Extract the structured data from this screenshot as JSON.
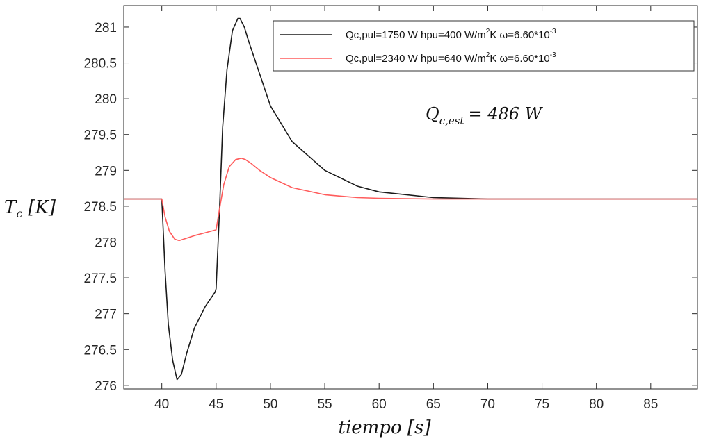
{
  "chart_data": {
    "type": "line",
    "xlabel": "tiempo [s]",
    "ylabel": "T_c [K]",
    "ylabel_main": "T",
    "ylabel_sub": "c",
    "ylabel_unit": "[K]",
    "xlim": [
      36.5,
      89.3
    ],
    "ylim": [
      275.95,
      281.3
    ],
    "xticks": [
      40,
      45,
      50,
      55,
      60,
      65,
      70,
      75,
      80,
      85
    ],
    "yticks": [
      276,
      276.5,
      277,
      277.5,
      278,
      278.5,
      279,
      279.5,
      280,
      280.5,
      281
    ],
    "ytick_labels": [
      "276",
      "276.5",
      "277",
      "277.5",
      "278",
      "278.5",
      "279",
      "279.5",
      "280",
      "280.5",
      "281"
    ],
    "grid": false,
    "legend_position": "top-right",
    "annotation": {
      "main": "Q",
      "sub": "c,est",
      "text": "= 486 W"
    },
    "series": [
      {
        "name": "Qc,pul=1750 W  hpu=400 W/m²K  ω=6.60*10⁻³",
        "legend_parts": [
          "Qc,pul=1750 W  hpu=400 W/m",
          "2",
          "K  ω=6.60*10",
          "-3"
        ],
        "color": "#1a1a1a",
        "x": [
          36.5,
          40,
          40.3,
          40.6,
          41.0,
          41.4,
          41.8,
          42.3,
          43,
          44,
          44.9,
          45.0,
          45.3,
          45.6,
          46,
          46.5,
          47.0,
          47.2,
          47.6,
          48,
          49,
          50,
          52,
          55,
          58,
          60,
          65,
          70,
          75,
          80,
          85,
          89.3
        ],
        "y": [
          278.6,
          278.6,
          277.6,
          276.85,
          276.35,
          276.08,
          276.15,
          276.45,
          276.8,
          277.1,
          277.3,
          277.35,
          278.4,
          279.6,
          280.4,
          280.95,
          281.12,
          281.12,
          281.0,
          280.8,
          280.35,
          279.9,
          279.4,
          279.0,
          278.78,
          278.7,
          278.62,
          278.6,
          278.6,
          278.6,
          278.6,
          278.6
        ]
      },
      {
        "name": "Qc,pul=2340 W  hpu=640 W/m²K  ω=6.60*10⁻³",
        "legend_parts": [
          "Qc,pul=2340 W  hpu=640 W/m",
          "2",
          "K  ω=6.60*10",
          "-3"
        ],
        "color": "#ff5c5c",
        "x": [
          36.5,
          40,
          40.3,
          40.7,
          41.2,
          41.6,
          42,
          43,
          44,
          45,
          45.3,
          45.7,
          46.2,
          46.8,
          47.3,
          47.7,
          48.2,
          49,
          50,
          52,
          55,
          58,
          60,
          65,
          70,
          75,
          80,
          85,
          89.3
        ],
        "y": [
          278.6,
          278.6,
          278.35,
          278.15,
          278.04,
          278.02,
          278.04,
          278.09,
          278.13,
          278.17,
          278.45,
          278.8,
          279.05,
          279.15,
          279.17,
          279.15,
          279.1,
          279.0,
          278.9,
          278.76,
          278.66,
          278.62,
          278.61,
          278.6,
          278.6,
          278.6,
          278.6,
          278.6,
          278.6
        ]
      }
    ]
  }
}
